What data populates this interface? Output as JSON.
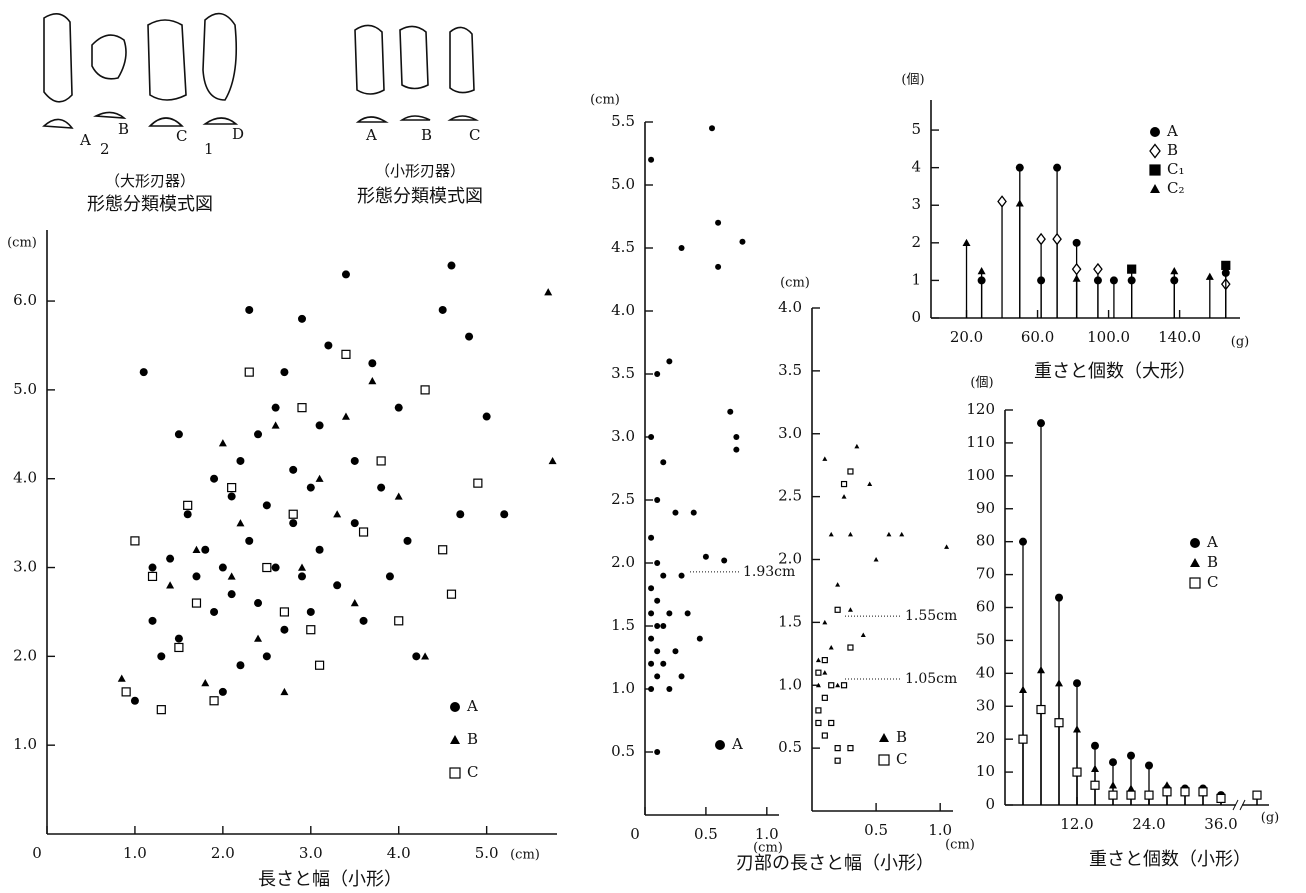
{
  "diagrams": [
    {
      "labels": [
        "A",
        "B",
        "2",
        "C",
        "1",
        "D"
      ],
      "caption": "（大形刃器）",
      "title": "形態分類模式図"
    },
    {
      "labels": [
        "A",
        "B",
        "C"
      ],
      "caption": "（小形刃器）",
      "title": "形態分類模式図"
    }
  ],
  "chart_data": [
    {
      "type": "scatter",
      "title": "長さと幅（小形）",
      "x_label": "(cm)",
      "y_label": "(cm)",
      "xlim": [
        0,
        5.8
      ],
      "ylim": [
        0,
        6.8
      ],
      "xticks": [
        0,
        {
          "value": 1,
          "label": "1.0"
        },
        {
          "value": 2,
          "label": "2.0"
        },
        {
          "value": 3,
          "label": "3.0"
        },
        {
          "value": 4,
          "label": "4.0"
        },
        {
          "value": 5,
          "label": "5.0"
        }
      ],
      "yticks": [
        {
          "value": 1,
          "label": "1.0"
        },
        {
          "value": 2,
          "label": "2.0"
        },
        {
          "value": 3,
          "label": "3.0"
        },
        {
          "value": 4,
          "label": "4.0"
        },
        {
          "value": 5,
          "label": "5.0"
        },
        {
          "value": 6,
          "label": "6.0"
        }
      ],
      "series": [
        {
          "name": "A",
          "marker": "circle",
          "color": "#000000",
          "x": [
            1.1,
            1.2,
            1.3,
            1.4,
            1.5,
            1.5,
            1.6,
            1.7,
            1.8,
            1.9,
            1.9,
            2.0,
            2.0,
            2.1,
            2.1,
            2.2,
            2.2,
            2.3,
            2.3,
            2.4,
            2.4,
            2.5,
            2.5,
            2.6,
            2.6,
            2.7,
            2.7,
            2.8,
            2.8,
            2.9,
            2.9,
            3.0,
            3.0,
            3.1,
            3.1,
            3.2,
            3.3,
            3.4,
            3.5,
            3.5,
            3.6,
            3.7,
            3.8,
            3.9,
            4.0,
            4.1,
            4.2,
            4.5,
            4.6,
            4.7,
            4.8,
            5.0,
            5.2,
            1.0,
            1.2
          ],
          "values": [
            5.2,
            2.4,
            2.0,
            3.1,
            4.5,
            2.2,
            3.6,
            2.9,
            3.2,
            2.5,
            4.0,
            3.0,
            1.6,
            3.8,
            2.7,
            4.2,
            1.9,
            5.9,
            3.3,
            2.6,
            4.5,
            3.7,
            2.0,
            4.8,
            3.0,
            2.3,
            5.2,
            4.1,
            3.5,
            5.8,
            2.9,
            3.9,
            2.5,
            4.6,
            3.2,
            5.5,
            2.8,
            6.3,
            4.2,
            3.5,
            2.4,
            5.3,
            3.9,
            2.9,
            4.8,
            3.3,
            2.0,
            5.9,
            6.4,
            3.6,
            5.6,
            4.7,
            3.6,
            1.5,
            3.0
          ]
        },
        {
          "name": "B",
          "marker": "triangle",
          "color": "#000000",
          "x": [
            0.85,
            1.4,
            1.7,
            2.0,
            2.2,
            2.4,
            2.6,
            2.9,
            3.1,
            3.3,
            3.5,
            3.7,
            4.0,
            4.3,
            5.7,
            5.75,
            1.8,
            2.7,
            3.4,
            2.1
          ],
          "values": [
            1.75,
            2.8,
            3.2,
            4.4,
            3.5,
            2.2,
            4.6,
            3.0,
            4.0,
            3.6,
            2.6,
            5.1,
            3.8,
            2.0,
            6.1,
            4.2,
            1.7,
            1.6,
            4.7,
            2.9
          ]
        },
        {
          "name": "C",
          "marker": "open-square",
          "color": "#000000",
          "x": [
            0.9,
            1.0,
            1.2,
            1.3,
            1.5,
            1.7,
            1.9,
            2.1,
            2.3,
            2.5,
            2.7,
            2.9,
            3.1,
            3.4,
            3.6,
            3.8,
            4.0,
            4.3,
            4.5,
            4.6,
            4.9,
            1.6,
            2.8,
            3.0
          ],
          "values": [
            1.6,
            3.3,
            2.9,
            1.4,
            2.1,
            2.6,
            1.5,
            3.9,
            5.2,
            3.0,
            2.5,
            4.8,
            1.9,
            5.4,
            3.4,
            4.2,
            2.4,
            5.0,
            3.2,
            2.7,
            3.95,
            3.7,
            3.6,
            2.3
          ]
        }
      ]
    },
    {
      "type": "scatter",
      "title": "刃部の長さと幅（小形）",
      "x_label": "(cm)",
      "y_label": "(cm)",
      "xlim": [
        0,
        1.1
      ],
      "ylim": [
        0,
        5.5
      ],
      "xticks": [
        0,
        0.5,
        {
          "value": 1,
          "label": "1.0"
        }
      ],
      "yticks": [
        0.5,
        {
          "value": 1,
          "label": "1.0"
        },
        1.5,
        {
          "value": 2,
          "label": "2.0"
        },
        2.5,
        {
          "value": 3,
          "label": "3.0"
        },
        3.5,
        {
          "value": 4,
          "label": "4.0"
        },
        4.5,
        {
          "value": 5,
          "label": "5.0"
        },
        5.5
      ],
      "reference_lines": [
        {
          "value": 1.93,
          "label": "1.93cm"
        }
      ],
      "series": [
        {
          "name": "A",
          "marker": "circle",
          "color": "#000000",
          "x": [
            0.05,
            0.05,
            0.05,
            0.05,
            0.05,
            0.05,
            0.05,
            0.05,
            0.1,
            0.1,
            0.1,
            0.1,
            0.1,
            0.1,
            0.1,
            0.1,
            0.15,
            0.15,
            0.15,
            0.15,
            0.2,
            0.2,
            0.2,
            0.25,
            0.25,
            0.3,
            0.3,
            0.3,
            0.35,
            0.4,
            0.45,
            0.5,
            0.55,
            0.6,
            0.6,
            0.65,
            0.7,
            0.75,
            0.75,
            0.8
          ],
          "values": [
            1.0,
            1.2,
            1.4,
            1.6,
            1.8,
            2.2,
            3.0,
            5.2,
            1.1,
            1.3,
            1.5,
            1.7,
            2.0,
            2.5,
            3.5,
            0.5,
            1.2,
            1.5,
            1.9,
            2.8,
            1.0,
            1.6,
            3.6,
            1.3,
            2.4,
            1.1,
            1.9,
            4.5,
            1.6,
            2.4,
            1.4,
            2.05,
            5.45,
            4.7,
            4.35,
            2.02,
            3.2,
            3.0,
            2.9,
            4.55
          ]
        }
      ]
    },
    {
      "type": "scatter",
      "x_label": "(cm)",
      "y_label": "(cm)",
      "xlim": [
        0,
        1.1
      ],
      "ylim": [
        0,
        4.0
      ],
      "xticks": [
        0.5,
        {
          "value": 1,
          "label": "1.0"
        }
      ],
      "yticks": [
        0.5,
        {
          "value": 1,
          "label": "1.0"
        },
        1.5,
        {
          "value": 2,
          "label": "2.0"
        },
        2.5,
        {
          "value": 3,
          "label": "3.0"
        },
        3.5,
        {
          "value": 4,
          "label": "4.0"
        }
      ],
      "reference_lines": [
        {
          "value": 1.55,
          "label": "1.55cm"
        },
        {
          "value": 1.05,
          "label": "1.05cm"
        }
      ],
      "series": [
        {
          "name": "B",
          "marker": "triangle",
          "color": "#000000",
          "x": [
            0.05,
            0.05,
            0.1,
            0.1,
            0.1,
            0.15,
            0.15,
            0.2,
            0.2,
            0.25,
            0.3,
            0.3,
            0.35,
            0.4,
            0.45,
            0.5,
            0.6,
            0.7,
            1.05,
            0.1
          ],
          "values": [
            1.2,
            1.0,
            2.8,
            1.5,
            1.1,
            2.2,
            1.3,
            1.8,
            1.0,
            2.5,
            2.2,
            1.6,
            2.9,
            1.4,
            2.6,
            2.0,
            2.2,
            2.2,
            2.1,
            0.6
          ]
        },
        {
          "name": "C",
          "marker": "open-square",
          "color": "#000000",
          "x": [
            0.05,
            0.05,
            0.05,
            0.1,
            0.1,
            0.1,
            0.15,
            0.15,
            0.2,
            0.2,
            0.25,
            0.25,
            0.3,
            0.3,
            0.3,
            0.2
          ],
          "values": [
            0.7,
            0.8,
            1.1,
            0.9,
            1.2,
            0.6,
            0.7,
            1.0,
            1.6,
            0.5,
            2.6,
            1.0,
            2.7,
            1.3,
            0.5,
            0.4
          ]
        }
      ]
    },
    {
      "type": "stem",
      "title": "重さと個数（大形）",
      "x_label": "(g)",
      "y_label": "(個)",
      "xlim": [
        0,
        174
      ],
      "ylim": [
        0,
        5.8
      ],
      "xticks": [
        {
          "value": 20,
          "label": "20.0"
        },
        {
          "value": 60,
          "label": "60.0"
        },
        {
          "value": 100,
          "label": "100.0"
        },
        {
          "value": 140,
          "label": "140.0"
        }
      ],
      "yticks": [
        0,
        1,
        2,
        3,
        4,
        5
      ],
      "series": [
        {
          "name": "A",
          "marker": "circle",
          "color": "#000000",
          "x": [
            28.5,
            50,
            62,
            71,
            82,
            94,
            103,
            113,
            137,
            166
          ],
          "values": [
            1,
            4,
            1,
            4,
            2,
            1,
            1,
            1,
            1,
            1.2
          ]
        },
        {
          "name": "B",
          "marker": "open-diamond",
          "color": "#000000",
          "x": [
            40,
            62,
            71,
            82,
            94,
            166
          ],
          "values": [
            3.1,
            2.1,
            2.1,
            1.3,
            1.3,
            0.9
          ]
        },
        {
          "name": "C₁",
          "marker": "square",
          "color": "#000000",
          "x": [
            113,
            166
          ],
          "values": [
            1.3,
            1.4
          ]
        },
        {
          "name": "C₂",
          "marker": "triangle",
          "color": "#000000",
          "x": [
            20,
            28.5,
            50,
            82,
            137,
            157
          ],
          "values": [
            2,
            1.25,
            3.05,
            1.05,
            1.25,
            1.1
          ]
        }
      ]
    },
    {
      "type": "stem",
      "title": "重さと個数（小形）",
      "x_label": "(g)",
      "y_label": "(個)",
      "xlim": [
        0,
        44
      ],
      "ylim": [
        0,
        120
      ],
      "xticks": [
        {
          "value": 12,
          "label": "12.0"
        },
        {
          "value": 24,
          "label": "24.0"
        },
        {
          "value": 36,
          "label": "36.0"
        }
      ],
      "yticks": [
        0,
        10,
        20,
        30,
        40,
        50,
        60,
        70,
        80,
        90,
        100,
        110,
        120
      ],
      "x": [
        3,
        6,
        9,
        12,
        15,
        18,
        21,
        24,
        27,
        30,
        33,
        36,
        42
      ],
      "series": [
        {
          "name": "A",
          "marker": "circle",
          "color": "#000000",
          "values": [
            80,
            116,
            63,
            37,
            18,
            13,
            15,
            12,
            5,
            5,
            5,
            3,
            3
          ]
        },
        {
          "name": "B",
          "marker": "triangle",
          "color": "#000000",
          "values": [
            35,
            41,
            37,
            23,
            11,
            6,
            5,
            3,
            6,
            5,
            4,
            null,
            null
          ]
        },
        {
          "name": "C",
          "marker": "open-square",
          "color": "#000000",
          "values": [
            20,
            29,
            25,
            10,
            6,
            3,
            3,
            3,
            4,
            4,
            4,
            2,
            3
          ]
        }
      ]
    }
  ]
}
